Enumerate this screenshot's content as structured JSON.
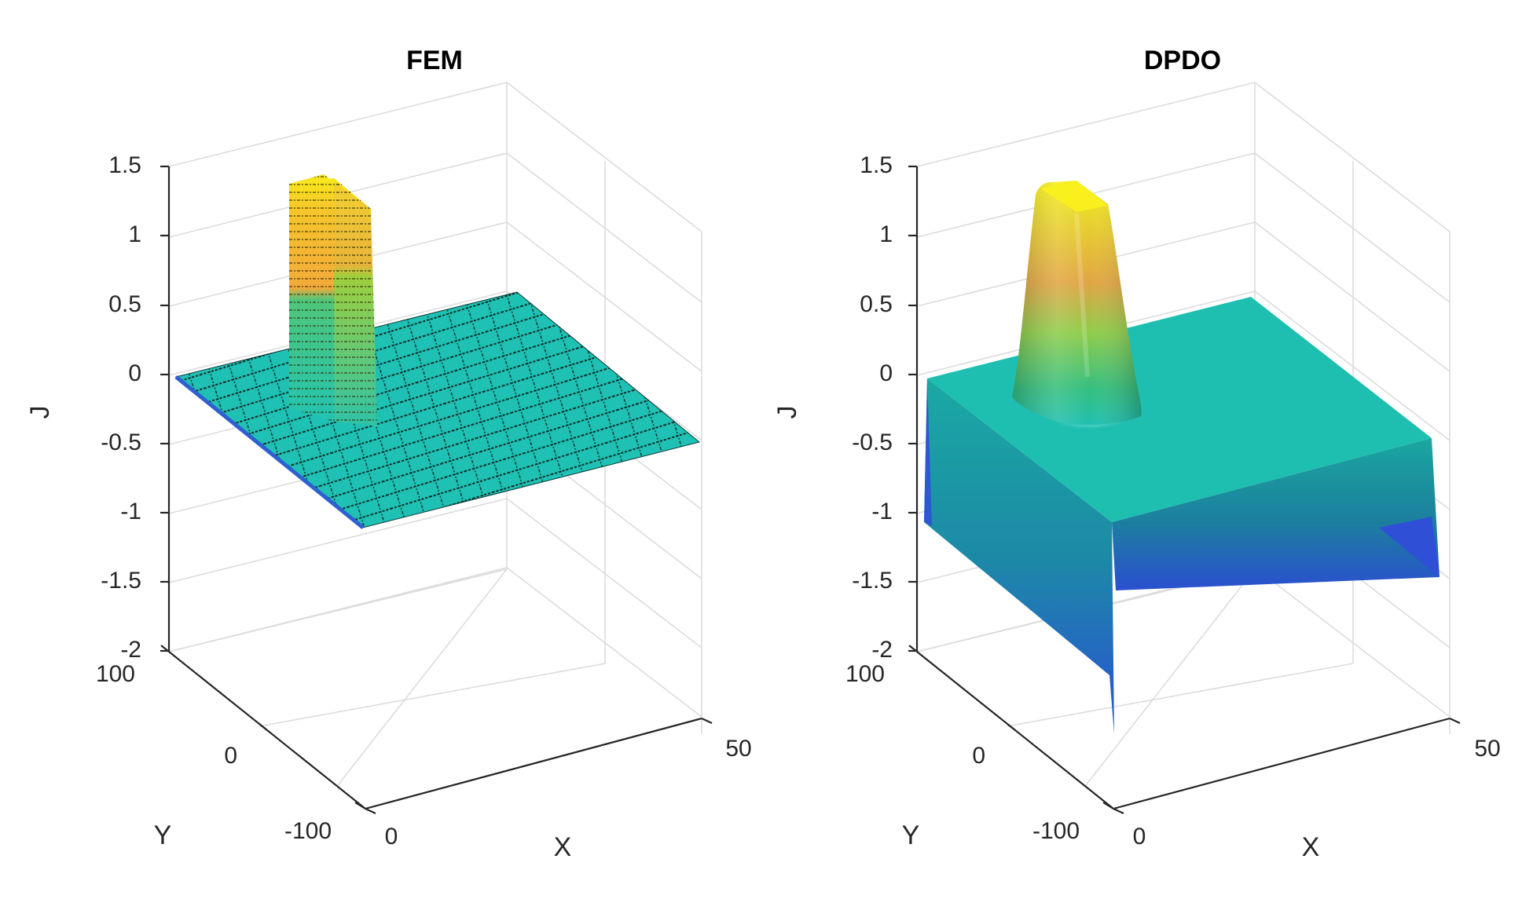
{
  "chart_data": [
    {
      "type": "surface3d",
      "title": "FEM",
      "xlabel": "X",
      "ylabel": "Y",
      "zlabel": "J",
      "x_ticks": [
        "0",
        "50"
      ],
      "y_ticks": [
        "100",
        "0",
        "-100"
      ],
      "z_ticks": [
        "1.5",
        "1",
        "0.5",
        "0",
        "-0.5",
        "-1",
        "-1.5",
        "-2"
      ],
      "zlim": [
        -2,
        1.5
      ],
      "xlim": [
        0,
        50
      ],
      "ylim": [
        -100,
        100
      ],
      "surface": {
        "baseline_value": 0,
        "peak_value": 1.35,
        "peak_location": {
          "x": 10,
          "y": 50
        },
        "edge_style": "mesh"
      },
      "colors": {
        "low": "#3b2fa8",
        "mid": "#1fbfb0",
        "green": "#4cc46e",
        "orange": "#f5a623",
        "high": "#f9e81b"
      }
    },
    {
      "type": "surface3d",
      "title": "DPDO",
      "xlabel": "X",
      "ylabel": "Y",
      "zlabel": "J",
      "x_ticks": [
        "0",
        "50"
      ],
      "y_ticks": [
        "100",
        "0",
        "-100"
      ],
      "z_ticks": [
        "1.5",
        "1",
        "0.5",
        "0",
        "-0.5",
        "-1",
        "-1.5",
        "-2"
      ],
      "zlim": [
        -2,
        1.5
      ],
      "xlim": [
        0,
        50
      ],
      "ylim": [
        -100,
        100
      ],
      "surface": {
        "baseline_value": 0,
        "peak_value": 1.35,
        "peak_location": {
          "x": 10,
          "y": 50
        },
        "edge_value": -1.5,
        "edge_style": "smooth"
      },
      "colors": {
        "low": "#3b2fa8",
        "mid": "#1fbfb0",
        "green": "#4cc46e",
        "orange": "#f5a623",
        "high": "#f9e81b"
      }
    }
  ]
}
